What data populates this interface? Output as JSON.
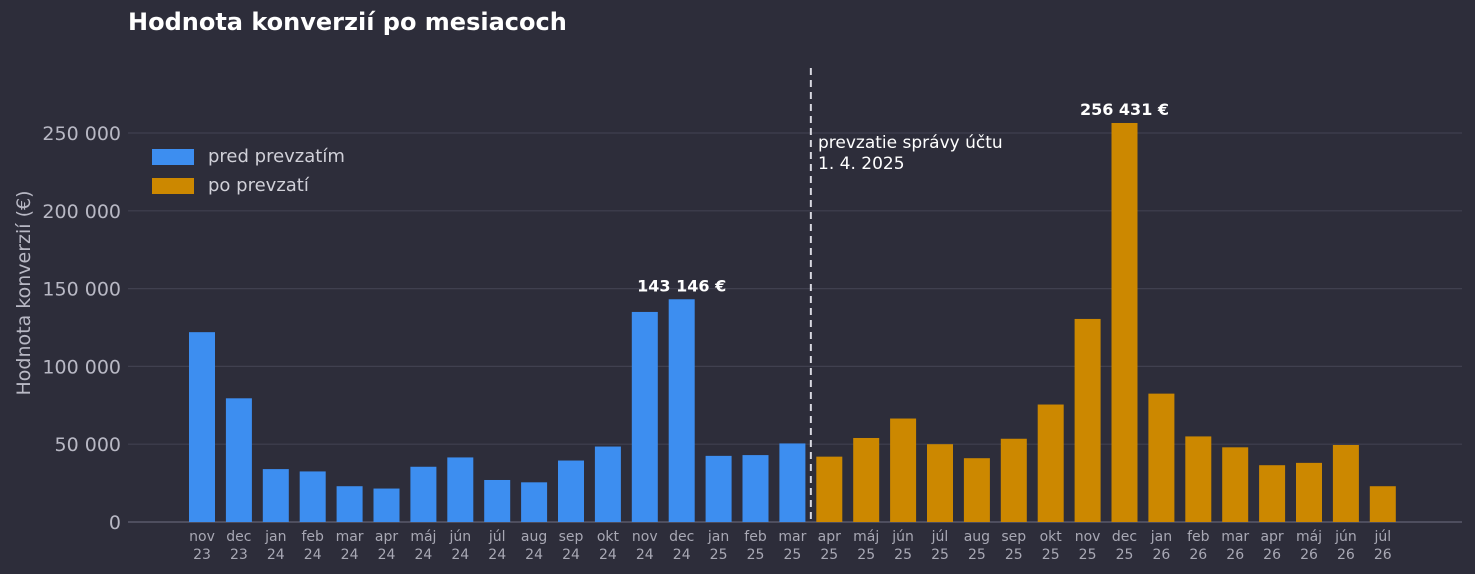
{
  "chart_data": {
    "type": "bar",
    "title": "Hodnota konverzií po mesiacoch",
    "xlabel": "",
    "ylabel": "Hodnota konverzií (€)",
    "ylim": [
      0,
      290000
    ],
    "yticks": [
      0,
      50000,
      100000,
      150000,
      200000,
      250000
    ],
    "ytick_labels": [
      "0",
      "50 000",
      "100 000",
      "150 000",
      "200 000",
      "250 000"
    ],
    "grid": true,
    "legend_position": "top-left",
    "categories": [
      "nov 23",
      "dec 23",
      "jan 24",
      "feb 24",
      "mar 24",
      "apr 24",
      "máj 24",
      "jún 24",
      "júl 24",
      "aug 24",
      "sep 24",
      "okt 24",
      "nov 24",
      "dec 24",
      "jan 25",
      "feb 25",
      "mar 25",
      "apr 25",
      "máj 25",
      "jún 25",
      "júl 25",
      "aug 25",
      "sep 25",
      "okt 25",
      "nov 25",
      "dec 25",
      "jan 26",
      "feb 26",
      "mar 26",
      "apr 26",
      "máj 26",
      "jún 26",
      "júl 26"
    ],
    "category_lines": [
      [
        "nov",
        "23"
      ],
      [
        "dec",
        "23"
      ],
      [
        "jan",
        "24"
      ],
      [
        "feb",
        "24"
      ],
      [
        "mar",
        "24"
      ],
      [
        "apr",
        "24"
      ],
      [
        "máj",
        "24"
      ],
      [
        "jún",
        "24"
      ],
      [
        "júl",
        "24"
      ],
      [
        "aug",
        "24"
      ],
      [
        "sep",
        "24"
      ],
      [
        "okt",
        "24"
      ],
      [
        "nov",
        "24"
      ],
      [
        "dec",
        "24"
      ],
      [
        "jan",
        "25"
      ],
      [
        "feb",
        "25"
      ],
      [
        "mar",
        "25"
      ],
      [
        "apr",
        "25"
      ],
      [
        "máj",
        "25"
      ],
      [
        "jún",
        "25"
      ],
      [
        "júl",
        "25"
      ],
      [
        "aug",
        "25"
      ],
      [
        "sep",
        "25"
      ],
      [
        "okt",
        "25"
      ],
      [
        "nov",
        "25"
      ],
      [
        "dec",
        "25"
      ],
      [
        "jan",
        "26"
      ],
      [
        "feb",
        "26"
      ],
      [
        "mar",
        "26"
      ],
      [
        "apr",
        "26"
      ],
      [
        "máj",
        "26"
      ],
      [
        "jún",
        "26"
      ],
      [
        "júl",
        "26"
      ]
    ],
    "series": [
      {
        "name": "pred prevzatím",
        "color": "#3d8ef0",
        "values": [
          122000,
          79500,
          34000,
          32500,
          23000,
          21500,
          35500,
          41500,
          27000,
          25500,
          39500,
          48500,
          135000,
          143146,
          42500,
          43000,
          50500,
          null,
          null,
          null,
          null,
          null,
          null,
          null,
          null,
          null,
          null,
          null,
          null,
          null,
          null,
          null,
          null
        ]
      },
      {
        "name": "po prevzatí",
        "color": "#cc8800",
        "values": [
          null,
          null,
          null,
          null,
          null,
          null,
          null,
          null,
          null,
          null,
          null,
          null,
          null,
          null,
          null,
          null,
          null,
          42000,
          54000,
          66500,
          50000,
          41000,
          53500,
          75500,
          130500,
          256431,
          82500,
          55000,
          48000,
          36500,
          38000,
          49500,
          23000
        ]
      }
    ],
    "data_labels": [
      {
        "category_index": 13,
        "text": "143 146 €"
      },
      {
        "category_index": 25,
        "text": "256 431 €"
      }
    ],
    "annotation": {
      "line1": "prevzatie správy účtu",
      "line2": "1. 4. 2025",
      "between_categories": [
        "mar 25",
        "apr 25"
      ]
    },
    "colors": {
      "background": "#2d2d3a",
      "grid": "#40404f",
      "axis_text": "#b8b8c4",
      "tick_text": "#a8a8b4",
      "bar_label": "#ffffff",
      "divider": "#d8d8e0"
    }
  }
}
